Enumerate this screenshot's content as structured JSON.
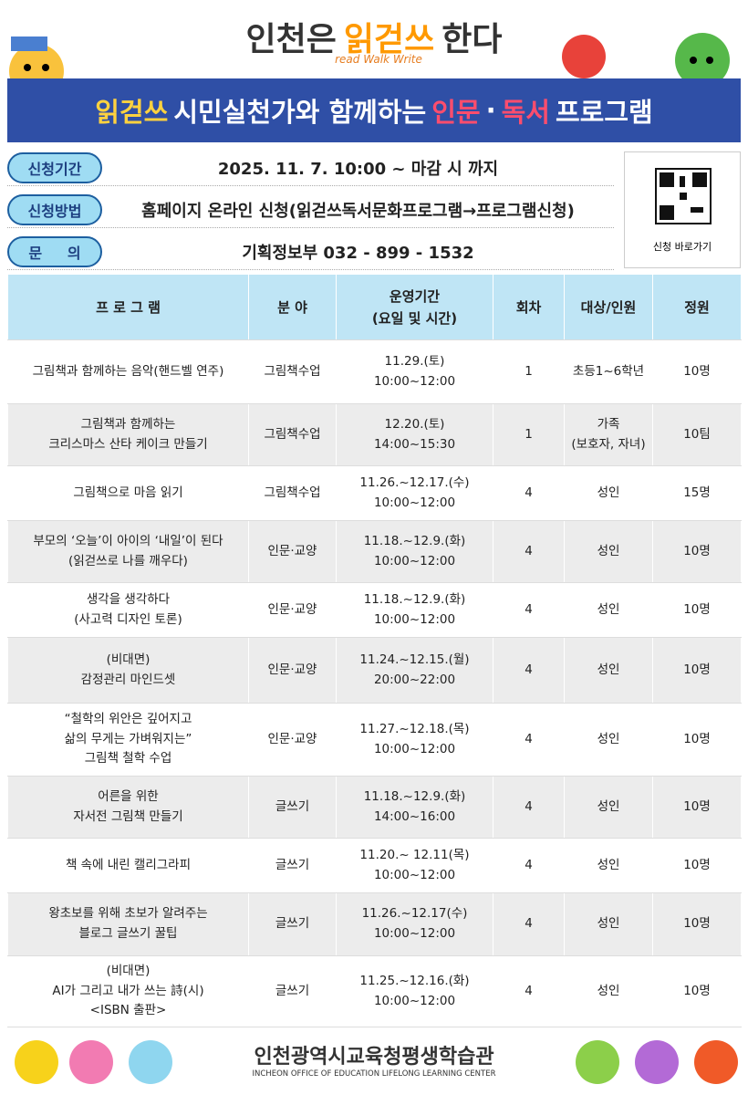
{
  "header": {
    "title_parts": [
      "인천은",
      "읽걷쓰",
      "한다"
    ],
    "tagline": "read Walk Write",
    "banner_parts": [
      "읽걷쓰",
      "시민실천가와 함께하는",
      "인문",
      "·",
      "독서",
      "프로그램"
    ]
  },
  "info": {
    "rows": [
      {
        "label": "신청기간",
        "value": "2025. 11. 7. 10:00 ~ 마감 시 까지"
      },
      {
        "label": "신청방법",
        "value": "홈페이지 온라인 신청(읽걷쓰독서문화프로그램→프로그램신청)"
      },
      {
        "label": "문     의",
        "value": "기획정보부 032 - 899 - 1532"
      }
    ],
    "qr_caption": "신청 바로가기"
  },
  "table": {
    "headers": [
      "프 로 그 램",
      "분    야",
      "운영기간\n(요일 및 시간)",
      "회차",
      "대상/인원",
      "정원"
    ],
    "rows": [
      [
        "그림책과 함께하는 음악(핸드벨 연주)",
        "그림책수업",
        "11.29.(토)\n10:00~12:00",
        "1",
        "초등1~6학년",
        "10명"
      ],
      [
        "그림책과 함께하는\n크리스마스 산타 케이크 만들기",
        "그림책수업",
        "12.20.(토)\n14:00~15:30",
        "1",
        "가족\n(보호자, 자녀)",
        "10팀"
      ],
      [
        "그림책으로 마음 읽기",
        "그림책수업",
        "11.26.~12.17.(수)\n10:00~12:00",
        "4",
        "성인",
        "15명"
      ],
      [
        "부모의 ‘오늘’이 아이의 ‘내일’이 된다\n(읽걷쓰로 나를 깨우다)",
        "인문·교양",
        "11.18.~12.9.(화)\n10:00~12:00",
        "4",
        "성인",
        "10명"
      ],
      [
        "생각을 생각하다\n(사고력 디자인 토론)",
        "인문·교양",
        "11.18.~12.9.(화)\n10:00~12:00",
        "4",
        "성인",
        "10명"
      ],
      [
        "(비대면)\n감정관리 마인드셋",
        "인문·교양",
        "11.24.~12.15.(월)\n20:00~22:00",
        "4",
        "성인",
        "10명"
      ],
      [
        "“철학의 위안은 깊어지고\n삶의 무게는 가벼워지는”\n그림책 철학 수업",
        "인문·교양",
        "11.27.~12.18.(목)\n10:00~12:00",
        "4",
        "성인",
        "10명"
      ],
      [
        "어른을 위한\n자서전 그림책 만들기",
        "글쓰기",
        "11.18.~12.9.(화)\n14:00~16:00",
        "4",
        "성인",
        "10명"
      ],
      [
        "책 속에 내린 캘리그라피",
        "글쓰기",
        "11.20.~ 12.11(목)\n10:00~12:00",
        "4",
        "성인",
        "10명"
      ],
      [
        "왕초보를 위해 초보가 알려주는\n블로그 글쓰기 꿀팁",
        "글쓰기",
        "11.26.~12.17(수)\n10:00~12:00",
        "4",
        "성인",
        "10명"
      ],
      [
        "(비대면)\nAI가 그리고 내가 쓰는 詩(시)\n<ISBN 출판>",
        "글쓰기",
        "11.25.~12.16.(화)\n10:00~12:00",
        "4",
        "성인",
        "10명"
      ]
    ]
  },
  "footer": {
    "org": "인천광역시교육청평생학습관",
    "org_en": "INCHEON OFFICE OF EDUCATION LIFELONG LEARNING CENTER"
  }
}
